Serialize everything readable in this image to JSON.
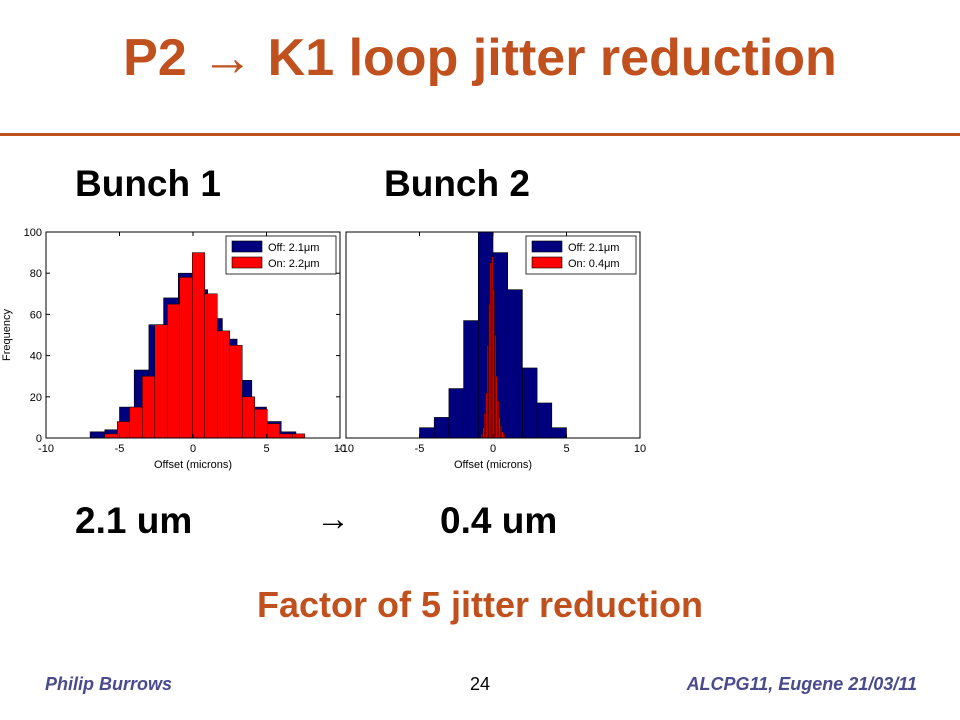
{
  "slide": {
    "title": "P2 → K1 loop jitter reduction",
    "bunch1_label": "Bunch 1",
    "bunch2_label": "Bunch 2",
    "result_left": "2.1 um",
    "result_arrow": "→",
    "result_right": "0.4 um",
    "conclusion": "Factor of 5 jitter reduction",
    "footer_left": "Philip Burrows",
    "page_number": "24",
    "footer_right": "ALCPG11, Eugene  21/03/11"
  },
  "colors": {
    "accent": "#c0501e",
    "off_series": "#00007f",
    "on_series": "#ff0000",
    "footer": "#4a4a8c"
  },
  "chart_data": [
    {
      "type": "bar",
      "title": "",
      "xlabel": "Offset (microns)",
      "ylabel": "Frequency",
      "xlim": [
        -10,
        10
      ],
      "ylim": [
        0,
        100
      ],
      "xticks": [
        -10,
        -5,
        0,
        5,
        10
      ],
      "yticks": [
        0,
        20,
        40,
        60,
        80,
        100
      ],
      "legend_position": "top-right",
      "series": [
        {
          "name": "Off: 2.1μm",
          "bin_width": 1.0,
          "bins": [
            {
              "x0": -7,
              "count": 3
            },
            {
              "x0": -6,
              "count": 4
            },
            {
              "x0": -5,
              "count": 15
            },
            {
              "x0": -4,
              "count": 33
            },
            {
              "x0": -3,
              "count": 55
            },
            {
              "x0": -2,
              "count": 68
            },
            {
              "x0": -1,
              "count": 80
            },
            {
              "x0": 0,
              "count": 72
            },
            {
              "x0": 1,
              "count": 58
            },
            {
              "x0": 2,
              "count": 48
            },
            {
              "x0": 3,
              "count": 28
            },
            {
              "x0": 4,
              "count": 15
            },
            {
              "x0": 5,
              "count": 8
            },
            {
              "x0": 6,
              "count": 3
            }
          ]
        },
        {
          "name": "On: 2.2μm",
          "bin_width": 0.85,
          "bins": [
            {
              "x0": -6.0,
              "count": 2
            },
            {
              "x0": -5.15,
              "count": 8
            },
            {
              "x0": -4.3,
              "count": 15
            },
            {
              "x0": -3.45,
              "count": 30
            },
            {
              "x0": -2.6,
              "count": 55
            },
            {
              "x0": -1.75,
              "count": 65
            },
            {
              "x0": -0.9,
              "count": 78
            },
            {
              "x0": -0.05,
              "count": 90
            },
            {
              "x0": 0.8,
              "count": 70
            },
            {
              "x0": 1.65,
              "count": 52
            },
            {
              "x0": 2.5,
              "count": 45
            },
            {
              "x0": 3.35,
              "count": 20
            },
            {
              "x0": 4.2,
              "count": 14
            },
            {
              "x0": 5.05,
              "count": 7
            },
            {
              "x0": 5.9,
              "count": 2
            },
            {
              "x0": 6.75,
              "count": 2
            }
          ]
        }
      ]
    },
    {
      "type": "bar",
      "title": "",
      "xlabel": "Offset (microns)",
      "ylabel": "",
      "xlim": [
        -10,
        10
      ],
      "ylim": [
        0,
        100
      ],
      "xticks": [
        -10,
        -5,
        0,
        5,
        10
      ],
      "legend_position": "top-right",
      "series": [
        {
          "name": "Off: 2.1μm",
          "bin_width": 1.0,
          "bins": [
            {
              "x0": -5,
              "count": 5
            },
            {
              "x0": -4,
              "count": 10
            },
            {
              "x0": -3,
              "count": 24
            },
            {
              "x0": -2,
              "count": 57
            },
            {
              "x0": -1,
              "count": 100
            },
            {
              "x0": 0,
              "count": 90
            },
            {
              "x0": 1,
              "count": 72
            },
            {
              "x0": 2,
              "count": 34
            },
            {
              "x0": 3,
              "count": 17
            },
            {
              "x0": 4,
              "count": 5
            }
          ]
        },
        {
          "name": "On: 0.4μm",
          "bin_width": 0.1,
          "bins": [
            {
              "x0": -0.8,
              "count": 2
            },
            {
              "x0": -0.7,
              "count": 5
            },
            {
              "x0": -0.6,
              "count": 12
            },
            {
              "x0": -0.5,
              "count": 22
            },
            {
              "x0": -0.4,
              "count": 45
            },
            {
              "x0": -0.3,
              "count": 65
            },
            {
              "x0": -0.2,
              "count": 85
            },
            {
              "x0": -0.1,
              "count": 88
            },
            {
              "x0": 0.0,
              "count": 72
            },
            {
              "x0": 0.1,
              "count": 50
            },
            {
              "x0": 0.2,
              "count": 30
            },
            {
              "x0": 0.3,
              "count": 18
            },
            {
              "x0": 0.4,
              "count": 10
            },
            {
              "x0": 0.5,
              "count": 6
            },
            {
              "x0": 0.6,
              "count": 3
            },
            {
              "x0": 0.7,
              "count": 2
            }
          ]
        }
      ]
    }
  ]
}
